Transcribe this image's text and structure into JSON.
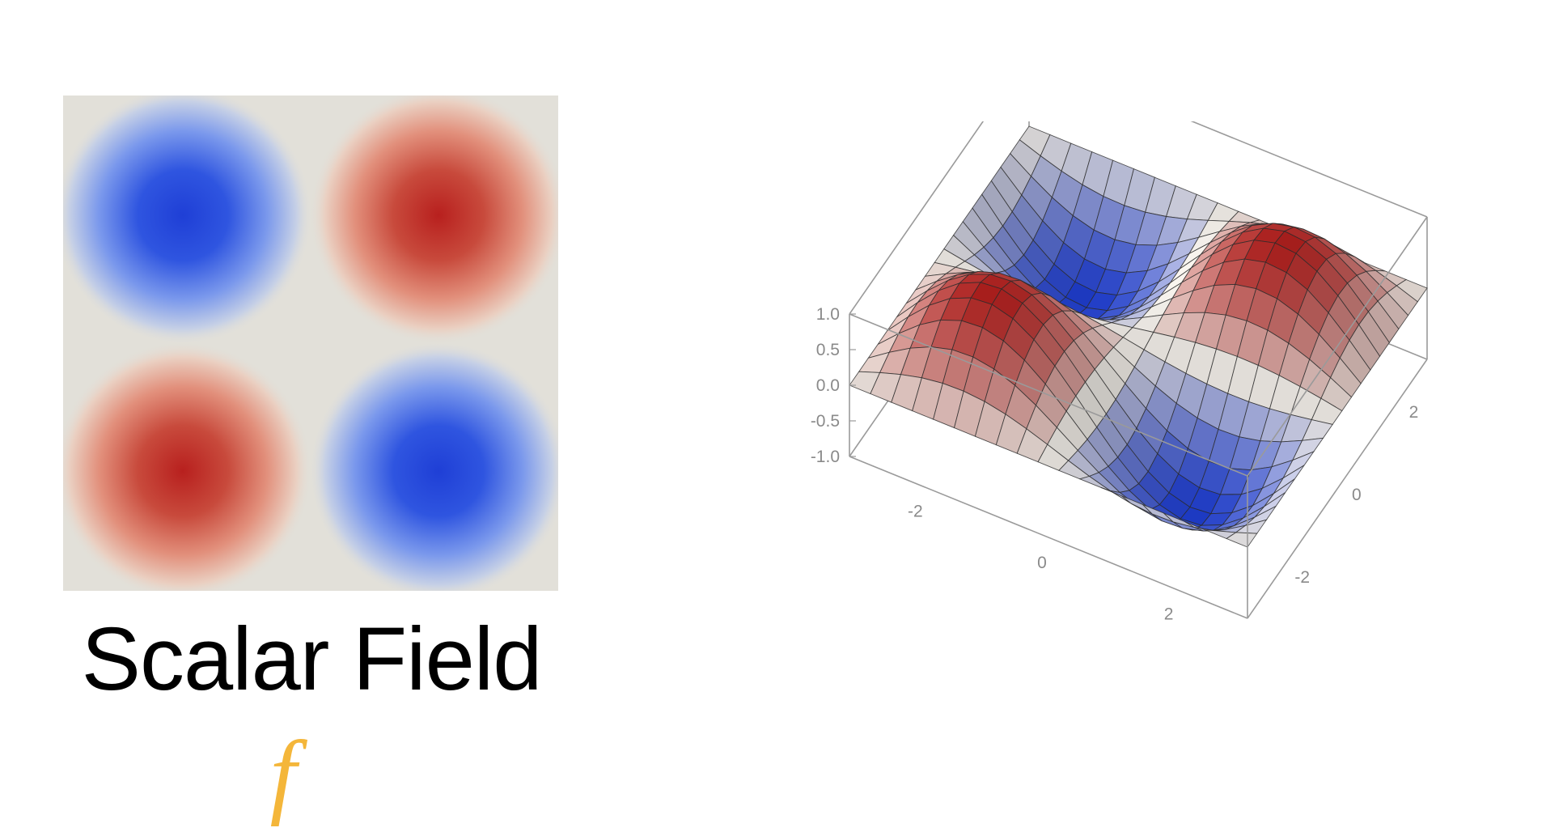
{
  "caption": {
    "title": "Scalar Field",
    "symbol": "f"
  },
  "colors": {
    "positive": "#b8201e",
    "negative": "#1f3fd6",
    "neutral": "#e2e0d9",
    "symbol": "#f4b63a",
    "box_lines": "#9a9a9a",
    "mesh": "#2a2a2a"
  },
  "density_plot": {
    "function": "sin(x)*sin(y)",
    "colormap": "blue-white-red",
    "domain": [
      -3.1416,
      3.1416
    ]
  },
  "surface_plot": {
    "function": "sin(x)*sin(y)",
    "x_range": [
      -3.1416,
      3.1416
    ],
    "y_range": [
      -3.1416,
      3.1416
    ],
    "z_range": [
      -1.0,
      1.0
    ],
    "z_ticks": [
      "1.0",
      "0.5",
      "0.0",
      "-0.5",
      "-1.0"
    ],
    "x_ticks": [
      "-2",
      "0",
      "2"
    ],
    "y_ticks": [
      "2",
      "0",
      "-2"
    ],
    "mesh_lines": 19
  }
}
